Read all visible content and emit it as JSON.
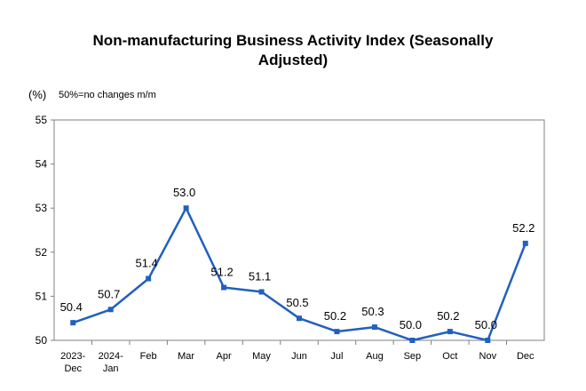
{
  "chart_data": {
    "type": "line",
    "title_line1": "Non-manufacturing Business Activity Index (Seasonally",
    "title_line2": "Adjusted)",
    "unit_label": "(%)",
    "note": "50%=no changes m/m",
    "categories": [
      [
        "2023-",
        "Dec"
      ],
      [
        "2024-",
        "Jan"
      ],
      [
        "Feb"
      ],
      [
        "Mar"
      ],
      [
        "Apr"
      ],
      [
        "May"
      ],
      [
        "Jun"
      ],
      [
        "Jul"
      ],
      [
        "Aug"
      ],
      [
        "Sep"
      ],
      [
        "Oct"
      ],
      [
        "Nov"
      ],
      [
        "Dec"
      ]
    ],
    "values": [
      50.4,
      50.7,
      51.4,
      53.0,
      51.2,
      51.1,
      50.5,
      50.2,
      50.3,
      50.0,
      50.2,
      50.0,
      52.2
    ],
    "value_labels": [
      "50.4",
      "50.7",
      "51.4",
      "53.0",
      "51.2",
      "51.1",
      "50.5",
      "50.2",
      "50.3",
      "50.0",
      "50.2",
      "50.0",
      "52.2"
    ],
    "yticks": [
      50,
      51,
      52,
      53,
      54,
      55
    ],
    "ylim": [
      50,
      55
    ],
    "line_color": "#2060c0",
    "grid": false,
    "legend": "none"
  }
}
